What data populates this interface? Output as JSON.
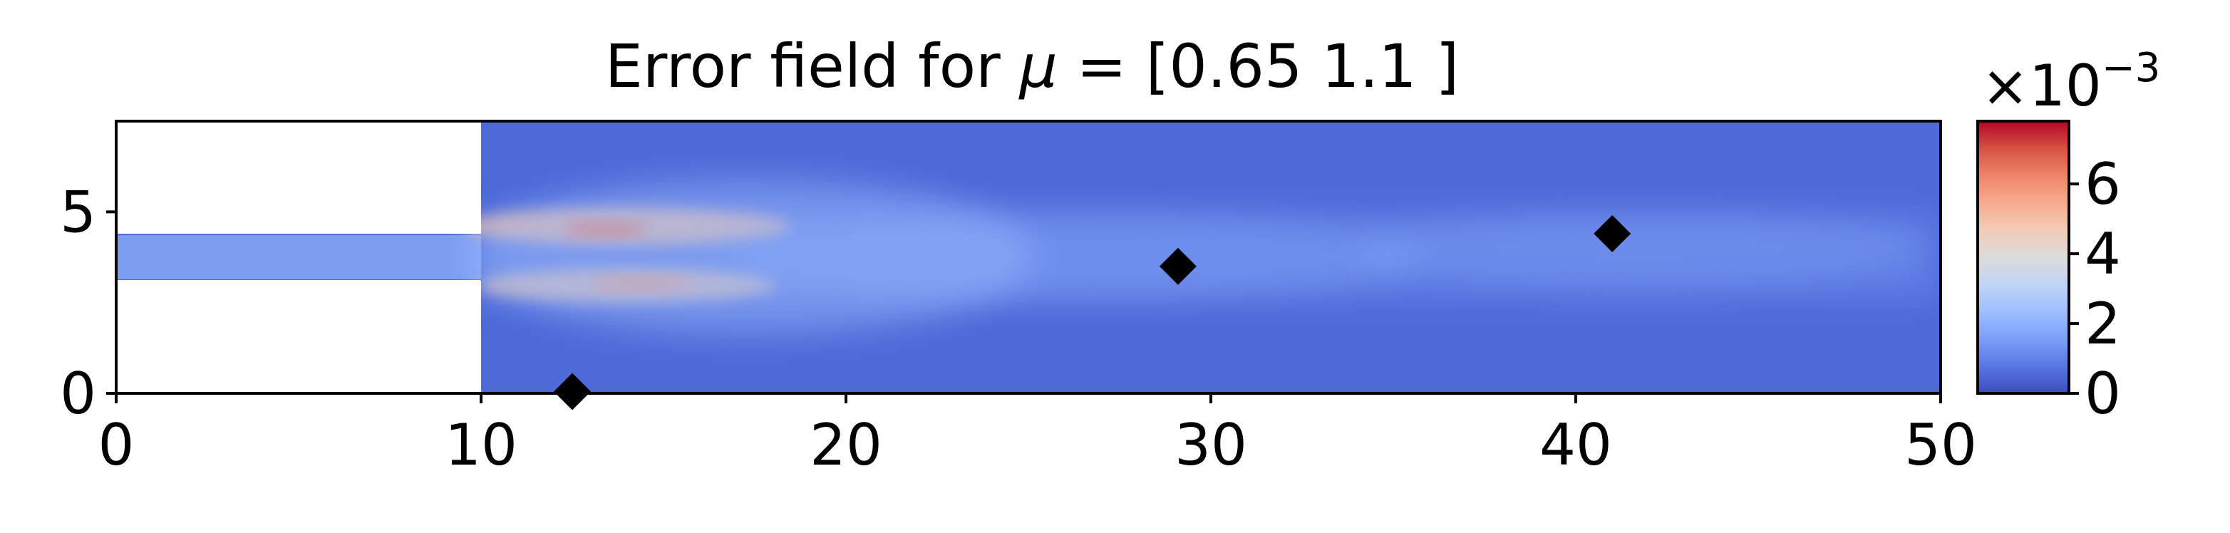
{
  "chart_data": {
    "type": "heatmap",
    "title": "Error field for μ = [0.65 1.1 ]",
    "title_prefix": "Error field for ",
    "title_symbol": "μ",
    "title_suffix": " = [0.65 1.1 ]",
    "xlabel": "",
    "ylabel": "",
    "xlim": [
      0,
      50
    ],
    "ylim": [
      0,
      7.5
    ],
    "x_ticks": [
      0,
      10,
      20,
      30,
      40,
      50
    ],
    "x_tick_labels": [
      "0",
      "10",
      "20",
      "30",
      "40",
      "50"
    ],
    "y_ticks": [
      0,
      5
    ],
    "y_tick_labels": [
      "0",
      "5"
    ],
    "grid": false,
    "colormap": "coolwarm",
    "colormap_stops": [
      "#3b4cc0",
      "#5977e3",
      "#7b9ff9",
      "#9ebeff",
      "#c0d4f5",
      "#dddcdc",
      "#f2cbb7",
      "#f7ac8e",
      "#ee8468",
      "#d65244",
      "#b40426"
    ],
    "domain": {
      "inlet_x": [
        0,
        10
      ],
      "inlet_y": [
        3.1,
        4.4
      ],
      "chamber_x": [
        10,
        50
      ],
      "chamber_y": [
        0,
        7.5
      ]
    },
    "colorbar": {
      "range": [
        0,
        0.0078
      ],
      "ticks": [
        0,
        2,
        4,
        6
      ],
      "tick_labels": [
        "0",
        "2",
        "4",
        "6"
      ],
      "scale_prefix": "×10",
      "scale_exponent": "−3"
    },
    "markers": {
      "shape": "diamond",
      "color": "#000000",
      "points": [
        {
          "x": 12.5,
          "y": 0.05
        },
        {
          "x": 29.1,
          "y": 3.5
        },
        {
          "x": 41.0,
          "y": 4.4
        }
      ]
    }
  }
}
